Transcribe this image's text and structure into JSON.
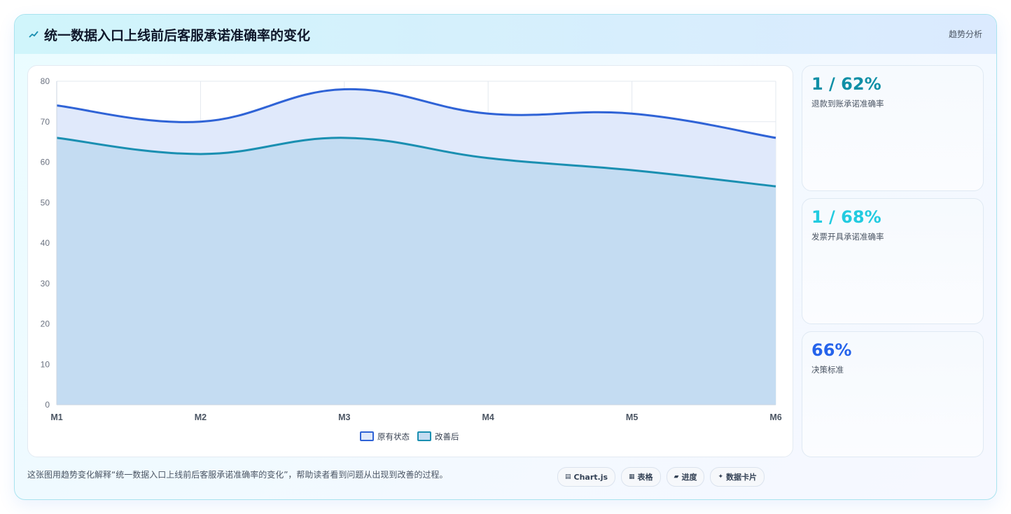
{
  "header": {
    "title": "统一数据入口上线前后客服承诺准确率的变化",
    "tag": "趋势分析"
  },
  "chart_data": {
    "type": "area",
    "categories": [
      "M1",
      "M2",
      "M3",
      "M4",
      "M5",
      "M6"
    ],
    "ylim": [
      0,
      80
    ],
    "yticks": [
      0,
      10,
      20,
      30,
      40,
      50,
      60,
      70,
      80
    ],
    "grid": true,
    "legend_position": "bottom",
    "series": [
      {
        "name": "原有状态",
        "values": [
          74,
          70,
          78,
          72,
          72,
          66
        ],
        "color": "#2f63d6",
        "fill": "#e0e9fb"
      },
      {
        "name": "改善后",
        "values": [
          66,
          62,
          66,
          61,
          58,
          54
        ],
        "color": "#1a8fb1",
        "fill": "#c4dcf2"
      }
    ]
  },
  "stats": [
    {
      "value": "1 / 62%",
      "label": "退款到账承诺准确率",
      "color": "#0f8fa6"
    },
    {
      "value": "1 / 68%",
      "label": "发票开具承诺准确率",
      "color": "#22cbe0"
    },
    {
      "value": "66%",
      "label": "决策标准",
      "color": "#2563eb"
    }
  ],
  "caption": "这张图用趋势变化解释“统一数据入口上线前后客服承诺准确率的变化”，帮助读者看到问题从出现到改善的过程。",
  "chips": [
    {
      "icon": "▤",
      "label": "Chart.js"
    },
    {
      "icon": "▦",
      "label": "表格"
    },
    {
      "icon": "▰",
      "label": "进度"
    },
    {
      "icon": "✦",
      "label": "数据卡片"
    }
  ]
}
